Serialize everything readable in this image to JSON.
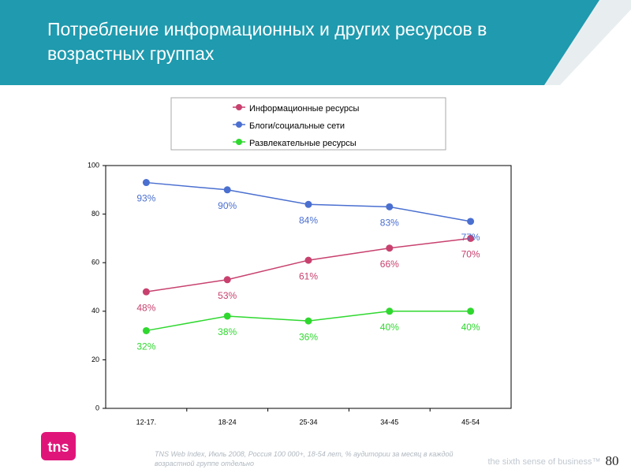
{
  "chart_data": {
    "type": "line",
    "title": "Потребление информационных и других ресурсов в возрастных группах",
    "categories": [
      "12-17.",
      "18-24",
      "25-34",
      "34-45",
      "45-54"
    ],
    "series": [
      {
        "name": "Информационные ресурсы",
        "color": "#c8416e",
        "values": [
          48,
          53,
          61,
          66,
          70
        ],
        "value_labels": [
          "48%",
          "53%",
          "61%",
          "66%",
          "70%"
        ]
      },
      {
        "name": "Блоги/социальные сети",
        "color": "#4a6fd0",
        "values": [
          93,
          90,
          84,
          83,
          77
        ],
        "value_labels": [
          "93%",
          "90%",
          "84%",
          "83%",
          "77%"
        ]
      },
      {
        "name": "Развлекательные ресурсы",
        "color": "#2fd82f",
        "values": [
          32,
          38,
          36,
          40,
          40
        ],
        "value_labels": [
          "32%",
          "38%",
          "36%",
          "40%",
          "40%"
        ]
      }
    ],
    "ylim": [
      0,
      100
    ],
    "yticks": [
      0,
      20,
      40,
      60,
      80,
      100
    ],
    "grid": false,
    "legend": "top"
  },
  "slide": {
    "logo": "tns",
    "source": "TNS Web Index, Июль 2008, Россия 100 000+, 18-54 лет, % аудитории за месяц в каждой возрастной группе отдельно",
    "slogan": "the sixth sense of business™",
    "page_number": "80"
  }
}
